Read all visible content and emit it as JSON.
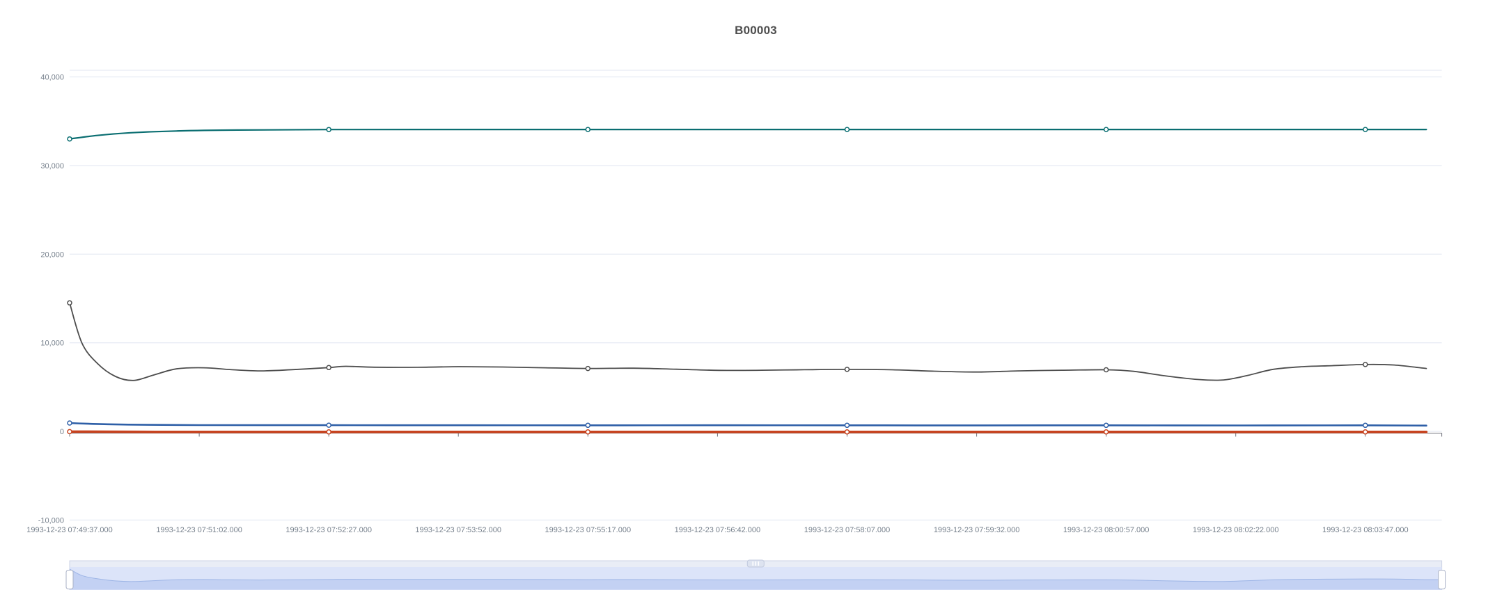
{
  "chart_data": {
    "type": "line",
    "title": "B00003",
    "xlabel": "",
    "ylabel": "",
    "legend": "none",
    "grid": true,
    "x_axis": {
      "type": "time",
      "tick_interval_seconds": 85,
      "tick_labels": [
        "1993-12-23 07:49:37.000",
        "1993-12-23 07:51:02.000",
        "1993-12-23 07:52:27.000",
        "1993-12-23 07:53:52.000",
        "1993-12-23 07:55:17.000",
        "1993-12-23 07:56:42.000",
        "1993-12-23 07:58:07.000",
        "1993-12-23 07:59:32.000",
        "1993-12-23 08:00:57.000",
        "1993-12-23 08:02:22.000",
        "1993-12-23 08:03:47.000"
      ]
    },
    "y_axis": {
      "min": -10000,
      "max": 40750,
      "interval": 10000,
      "ticks": [
        {
          "value": 40000,
          "label": "40,000"
        },
        {
          "value": 30000,
          "label": "30,000"
        },
        {
          "value": 20000,
          "label": "20,000"
        },
        {
          "value": 10000,
          "label": "10,000"
        },
        {
          "value": 0,
          "label": "0"
        },
        {
          "value": -10000,
          "label": "-10,000"
        }
      ],
      "gridline_values": [
        -10000,
        0,
        10000,
        20000,
        30000,
        40000,
        40750
      ]
    },
    "marker_times": [
      0,
      170,
      340,
      510,
      680,
      850
    ],
    "series": [
      {
        "name": "teal",
        "color": "#0a6e71",
        "width": 2.2,
        "points": [
          [
            0,
            33000
          ],
          [
            18,
            33400
          ],
          [
            40,
            33700
          ],
          [
            70,
            33900
          ],
          [
            110,
            34010
          ],
          [
            170,
            34060
          ],
          [
            260,
            34070
          ],
          [
            350,
            34070
          ],
          [
            440,
            34070
          ],
          [
            530,
            34070
          ],
          [
            620,
            34070
          ],
          [
            710,
            34070
          ],
          [
            800,
            34070
          ],
          [
            850,
            34070
          ],
          [
            890,
            34070
          ]
        ]
      },
      {
        "name": "gray",
        "color": "#4d4d4d",
        "width": 1.8,
        "points": [
          [
            0,
            14500
          ],
          [
            8,
            10000
          ],
          [
            18,
            7700
          ],
          [
            30,
            6200
          ],
          [
            42,
            5750
          ],
          [
            55,
            6350
          ],
          [
            70,
            7050
          ],
          [
            88,
            7180
          ],
          [
            105,
            6980
          ],
          [
            125,
            6820
          ],
          [
            147,
            6970
          ],
          [
            170,
            7200
          ],
          [
            181,
            7340
          ],
          [
            200,
            7240
          ],
          [
            228,
            7230
          ],
          [
            256,
            7300
          ],
          [
            284,
            7260
          ],
          [
            312,
            7180
          ],
          [
            340,
            7100
          ],
          [
            370,
            7130
          ],
          [
            398,
            7010
          ],
          [
            426,
            6890
          ],
          [
            454,
            6900
          ],
          [
            482,
            6960
          ],
          [
            510,
            7000
          ],
          [
            540,
            6950
          ],
          [
            567,
            6790
          ],
          [
            595,
            6700
          ],
          [
            622,
            6820
          ],
          [
            652,
            6900
          ],
          [
            680,
            6950
          ],
          [
            698,
            6780
          ],
          [
            718,
            6280
          ],
          [
            740,
            5860
          ],
          [
            757,
            5800
          ],
          [
            773,
            6320
          ],
          [
            790,
            7010
          ],
          [
            810,
            7310
          ],
          [
            828,
            7410
          ],
          [
            850,
            7550
          ],
          [
            869,
            7490
          ],
          [
            890,
            7100
          ]
        ]
      },
      {
        "name": "blue",
        "color": "#2e5fa7",
        "width": 2.6,
        "points": [
          [
            0,
            940
          ],
          [
            18,
            830
          ],
          [
            45,
            750
          ],
          [
            85,
            710
          ],
          [
            170,
            700
          ],
          [
            260,
            690
          ],
          [
            340,
            685
          ],
          [
            430,
            690
          ],
          [
            510,
            680
          ],
          [
            600,
            675
          ],
          [
            680,
            680
          ],
          [
            770,
            670
          ],
          [
            850,
            680
          ],
          [
            890,
            655
          ]
        ]
      },
      {
        "name": "red",
        "color": "#c8431f",
        "width": 3.6,
        "points": [
          [
            0,
            -30
          ],
          [
            45,
            -55
          ],
          [
            85,
            -60
          ],
          [
            200,
            -60
          ],
          [
            340,
            -60
          ],
          [
            480,
            -60
          ],
          [
            620,
            -60
          ],
          [
            760,
            -60
          ],
          [
            850,
            -60
          ],
          [
            890,
            -60
          ]
        ]
      }
    ]
  },
  "colors": {
    "gridline": "#e0e6f1",
    "axis_line": "#6e7079",
    "tick_label": "#76808c",
    "title": "#4e4e4e",
    "marker_fill": "#ffffff"
  },
  "datazoom": {
    "border": "#ccd3e6",
    "background": "#e9edf6",
    "selected_fill": "#dce4f9",
    "shadow_fill": "#c3d1f3",
    "shadow_line": "#9db5e6",
    "handle_fill": "#ffffff",
    "handle_border": "#a9b1c6",
    "grip_fill": "#dde3f0",
    "grip_border": "#c2cade",
    "grip_bars": "#ffffff"
  }
}
